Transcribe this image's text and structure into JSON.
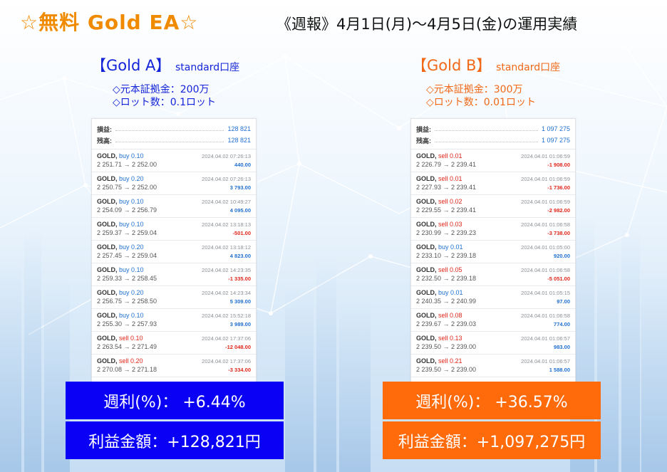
{
  "header": {
    "title": "☆無料 Gold EA☆",
    "subtitle": "《週報》4月1日(月)〜4月5日(金)の運用実績"
  },
  "colors": {
    "blue": "#0a00f5",
    "orange": "#ff6a0a",
    "title_orange": "#f08a00"
  },
  "accounts": [
    {
      "name": "【Gold A】",
      "type": "standard口座",
      "capital": "◇元本証拠金：200万",
      "lot": "◇ロット数：0.1ロット",
      "summary": [
        {
          "label": "損益:",
          "value": "128 821"
        },
        {
          "label": "残高:",
          "value": "128 821"
        }
      ],
      "trades": [
        {
          "symbol": "GOLD,",
          "side": "buy 0.10",
          "dir": "buy",
          "prices": "2 251.71 → 2 252.00",
          "date": "2024.04.02 07:26:13",
          "profit": "440.00",
          "sign": "pos"
        },
        {
          "symbol": "GOLD,",
          "side": "buy 0.20",
          "dir": "buy",
          "prices": "2 250.75 → 2 252.00",
          "date": "2024.04.02 07:26:13",
          "profit": "3 793.00",
          "sign": "pos"
        },
        {
          "symbol": "GOLD,",
          "side": "buy 0.10",
          "dir": "buy",
          "prices": "2 254.09 → 2 256.79",
          "date": "2024.04.02 10:49:27",
          "profit": "4 095.00",
          "sign": "pos"
        },
        {
          "symbol": "GOLD,",
          "side": "buy 0.10",
          "dir": "buy",
          "prices": "2 259.37 → 2 259.04",
          "date": "2024.04.02 13:18:13",
          "profit": "-501.00",
          "sign": "neg"
        },
        {
          "symbol": "GOLD,",
          "side": "buy 0.20",
          "dir": "buy",
          "prices": "2 257.45 → 2 259.04",
          "date": "2024.04.02 13:18:12",
          "profit": "4 823.00",
          "sign": "pos"
        },
        {
          "symbol": "GOLD,",
          "side": "buy 0.10",
          "dir": "buy",
          "prices": "2 259.33 → 2 258.45",
          "date": "2024.04.02 14:23:35",
          "profit": "-1 335.00",
          "sign": "neg"
        },
        {
          "symbol": "GOLD,",
          "side": "buy 0.20",
          "dir": "buy",
          "prices": "2 256.75 → 2 258.50",
          "date": "2024.04.02 14:23:34",
          "profit": "5 309.00",
          "sign": "pos"
        },
        {
          "symbol": "GOLD,",
          "side": "buy 0.10",
          "dir": "buy",
          "prices": "2 255.30 → 2 257.93",
          "date": "2024.04.02 15:52:18",
          "profit": "3 989.00",
          "sign": "pos"
        },
        {
          "symbol": "GOLD,",
          "side": "sell 0.10",
          "dir": "sell",
          "prices": "2 263.54 → 2 271.49",
          "date": "2024.04.02 17:37:06",
          "profit": "-12 048.00",
          "sign": "neg"
        },
        {
          "symbol": "GOLD,",
          "side": "sell 0.20",
          "dir": "sell",
          "prices": "2 270.08 → 2 271.18",
          "date": "2024.04.02 17:37:06",
          "profit": "-3 334.00",
          "sign": "neg"
        }
      ],
      "weekly_rate": "週利(%)：  +6.44%",
      "profit_amount": "利益金額：+128,821円"
    },
    {
      "name": "【Gold B】",
      "type": "standard口座",
      "capital": "◇元本証拠金：300万",
      "lot": "◇ロット数：0.01ロット",
      "summary": [
        {
          "label": "損益:",
          "value": "1 097 275"
        },
        {
          "label": "残高:",
          "value": "1 097 275"
        }
      ],
      "trades": [
        {
          "symbol": "GOLD,",
          "side": "sell 0.01",
          "dir": "sell",
          "prices": "2 226.79 → 2 239.41",
          "date": "2024.04.01 01:06:59",
          "profit": "-1 908.00",
          "sign": "neg"
        },
        {
          "symbol": "GOLD,",
          "side": "sell 0.01",
          "dir": "sell",
          "prices": "2 227.93 → 2 239.41",
          "date": "2024.04.01 01:06:59",
          "profit": "-1 736.00",
          "sign": "neg"
        },
        {
          "symbol": "GOLD,",
          "side": "sell 0.02",
          "dir": "sell",
          "prices": "2 229.55 → 2 239.41",
          "date": "2024.04.01 01:06:59",
          "profit": "-2 982.00",
          "sign": "neg"
        },
        {
          "symbol": "GOLD,",
          "side": "sell 0.03",
          "dir": "sell",
          "prices": "2 230.99 → 2 239.23",
          "date": "2024.04.01 01:06:58",
          "profit": "-3 738.00",
          "sign": "neg"
        },
        {
          "symbol": "GOLD,",
          "side": "buy 0.01",
          "dir": "buy",
          "prices": "2 233.10 → 2 239.18",
          "date": "2024.04.01 01:05:00",
          "profit": "920.00",
          "sign": "pos"
        },
        {
          "symbol": "GOLD,",
          "side": "sell 0.05",
          "dir": "sell",
          "prices": "2 232.50 → 2 239.18",
          "date": "2024.04.01 01:06:58",
          "profit": "-5 051.00",
          "sign": "neg"
        },
        {
          "symbol": "GOLD,",
          "side": "buy 0.01",
          "dir": "buy",
          "prices": "2 240.35 → 2 240.99",
          "date": "2024.04.01 01:05:15",
          "profit": "97.00",
          "sign": "pos"
        },
        {
          "symbol": "GOLD,",
          "side": "sell 0.08",
          "dir": "sell",
          "prices": "2 239.67 → 2 239.03",
          "date": "2024.04.01 01:06:58",
          "profit": "774.00",
          "sign": "pos"
        },
        {
          "symbol": "GOLD,",
          "side": "sell 0.13",
          "dir": "sell",
          "prices": "2 239.50 → 2 239.00",
          "date": "2024.04.01 01:06:57",
          "profit": "983.00",
          "sign": "pos"
        },
        {
          "symbol": "GOLD,",
          "side": "sell 0.21",
          "dir": "sell",
          "prices": "2 239.50 → 2 239.00",
          "date": "2024.04.01 01:06:57",
          "profit": "1 588.00",
          "sign": "pos"
        }
      ],
      "weekly_rate": "週利(%)：  +36.57%",
      "profit_amount": "利益金額：+1,097,275円"
    }
  ]
}
